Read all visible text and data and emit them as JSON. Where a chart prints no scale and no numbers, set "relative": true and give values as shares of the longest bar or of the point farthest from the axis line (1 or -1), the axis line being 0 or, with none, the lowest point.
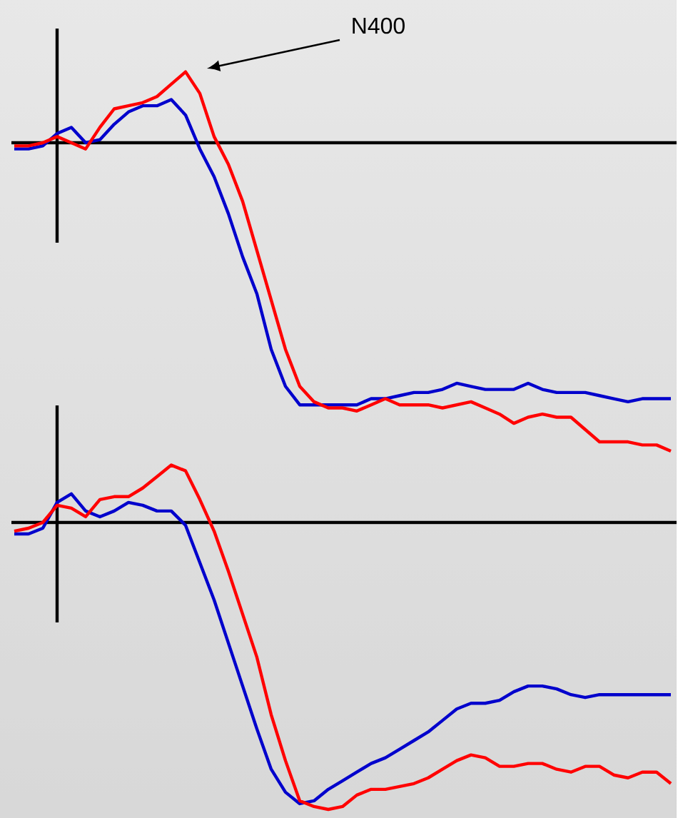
{
  "chart_data": [
    {
      "type": "line",
      "relative": true,
      "annotations": [
        "N400"
      ],
      "categories": [
        null,
        null,
        null,
        null,
        null,
        null,
        null,
        null,
        null,
        null,
        null,
        null,
        null,
        null,
        null,
        null,
        null,
        null,
        null,
        null,
        null,
        null,
        null,
        null,
        null,
        null,
        null,
        null,
        null,
        null,
        null,
        null,
        null,
        null,
        null,
        null,
        null,
        null,
        null,
        null,
        null,
        null,
        null,
        null,
        null,
        null,
        null
      ],
      "series": [
        {
          "color": "#0000cc",
          "values": [
            -0.02,
            -0.02,
            -0.01,
            0.03,
            0.05,
            0,
            0.01,
            0.06,
            0.1,
            0.12,
            0.12,
            0.14,
            0.09,
            -0.02,
            -0.11,
            -0.23,
            -0.37,
            -0.49,
            -0.67,
            -0.79,
            -0.85,
            -0.85,
            -0.85,
            -0.85,
            -0.85,
            -0.83,
            -0.83,
            -0.82,
            -0.81,
            -0.81,
            -0.8,
            -0.78,
            -0.79,
            -0.8,
            -0.8,
            -0.8,
            -0.78,
            -0.8,
            -0.81,
            -0.81,
            -0.81,
            -0.82,
            -0.83,
            -0.84,
            -0.83,
            -0.83,
            -0.83
          ]
        },
        {
          "color": "#ff0000",
          "values": [
            -0.01,
            -0.01,
            0,
            0.02,
            0,
            -0.02,
            0.05,
            0.11,
            0.12,
            0.13,
            0.15,
            0.19,
            0.23,
            0.16,
            0.02,
            -0.07,
            -0.19,
            -0.35,
            -0.51,
            -0.67,
            -0.79,
            -0.84,
            -0.86,
            -0.86,
            -0.87,
            -0.85,
            -0.83,
            -0.85,
            -0.85,
            -0.85,
            -0.86,
            -0.85,
            -0.84,
            -0.86,
            -0.88,
            -0.91,
            -0.89,
            -0.88,
            -0.89,
            -0.89,
            -0.93,
            -0.97,
            -0.97,
            -0.97,
            -0.98,
            -0.98,
            -1
          ]
        }
      ]
    },
    {
      "type": "line",
      "relative": true,
      "categories": [
        null,
        null,
        null,
        null,
        null,
        null,
        null,
        null,
        null,
        null,
        null,
        null,
        null,
        null,
        null,
        null,
        null,
        null,
        null,
        null,
        null,
        null,
        null,
        null,
        null,
        null,
        null,
        null,
        null,
        null,
        null,
        null,
        null,
        null,
        null,
        null,
        null,
        null,
        null,
        null,
        null,
        null,
        null,
        null,
        null,
        null,
        null
      ],
      "series": [
        {
          "color": "#0000cc",
          "values": [
            -0.04,
            -0.04,
            -0.02,
            0.07,
            0.1,
            0.04,
            0.02,
            0.04,
            0.07,
            0.06,
            0.04,
            0.04,
            -0.01,
            -0.14,
            -0.27,
            -0.42,
            -0.57,
            -0.72,
            -0.86,
            -0.94,
            -0.98,
            -0.97,
            -0.93,
            -0.9,
            -0.87,
            -0.84,
            -0.82,
            -0.79,
            -0.76,
            -0.73,
            -0.69,
            -0.65,
            -0.63,
            -0.63,
            -0.62,
            -0.59,
            -0.57,
            -0.57,
            -0.58,
            -0.6,
            -0.61,
            -0.6,
            -0.6,
            -0.6,
            -0.6,
            -0.6,
            -0.6
          ]
        },
        {
          "color": "#ff0000",
          "values": [
            -0.03,
            -0.02,
            0,
            0.06,
            0.05,
            0.02,
            0.08,
            0.09,
            0.09,
            0.12,
            0.16,
            0.2,
            0.18,
            0.08,
            -0.03,
            -0.17,
            -0.32,
            -0.47,
            -0.67,
            -0.83,
            -0.97,
            -0.99,
            -1,
            -0.99,
            -0.95,
            -0.93,
            -0.93,
            -0.92,
            -0.91,
            -0.89,
            -0.86,
            -0.83,
            -0.81,
            -0.82,
            -0.85,
            -0.85,
            -0.84,
            -0.84,
            -0.86,
            -0.87,
            -0.85,
            -0.85,
            -0.88,
            -0.89,
            -0.87,
            -0.87,
            -0.91
          ]
        }
      ]
    }
  ]
}
